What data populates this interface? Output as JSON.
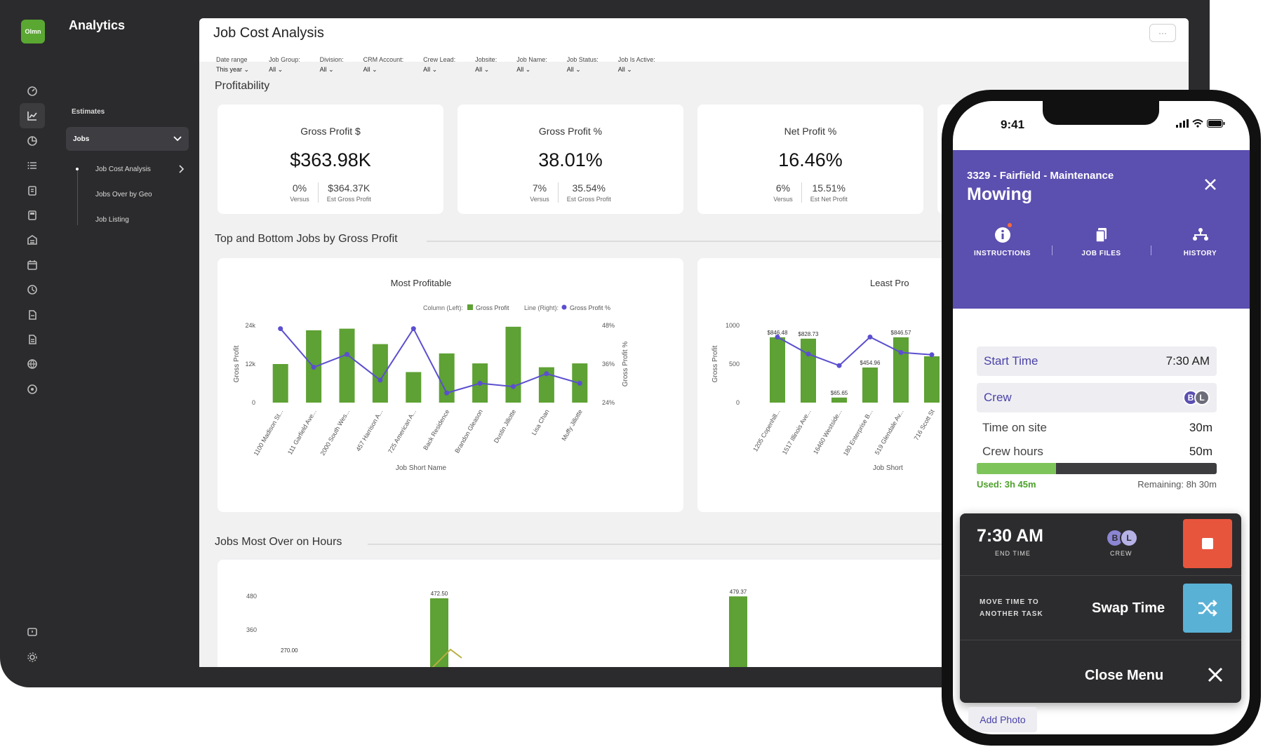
{
  "app": {
    "brand": "Olmn",
    "title": "Analytics"
  },
  "nav": {
    "section": "Estimates",
    "group": "Jobs",
    "items": [
      "Job Cost Analysis",
      "Jobs Over by Geo",
      "Job Listing"
    ]
  },
  "rail_icons": [
    "dashboard-icon",
    "chart-icon",
    "pie-icon",
    "list-icon",
    "report-icon",
    "calculator-icon",
    "building-icon",
    "calendar-icon",
    "clock-icon",
    "document-icon",
    "file-icon",
    "globe-icon",
    "target-icon"
  ],
  "rail_bottom_icons": [
    "feedback-icon",
    "settings-icon"
  ],
  "page": {
    "title": "Job Cost Analysis",
    "more_label": "···",
    "filters": [
      {
        "label": "Date range",
        "value": "This year"
      },
      {
        "label": "Job Group:",
        "value": "All"
      },
      {
        "label": "Division:",
        "value": "All"
      },
      {
        "label": "CRM Account:",
        "value": "All"
      },
      {
        "label": "Crew Lead:",
        "value": "All"
      },
      {
        "label": "Jobsite:",
        "value": "All"
      },
      {
        "label": "Job Name:",
        "value": "All"
      },
      {
        "label": "Job Status:",
        "value": "All"
      },
      {
        "label": "Job Is Active:",
        "value": "All"
      }
    ]
  },
  "profitability": {
    "title": "Profitability",
    "kpis": [
      {
        "label": "Gross Profit $",
        "value": "$363.98K",
        "a1": "0%",
        "b1": "Versus",
        "a2": "$364.37K",
        "b2": "Est Gross Profit"
      },
      {
        "label": "Gross Profit %",
        "value": "38.01%",
        "a1": "7%",
        "b1": "Versus",
        "a2": "35.54%",
        "b2": "Est Gross Profit"
      },
      {
        "label": "Net Profit %",
        "value": "16.46%",
        "a1": "6%",
        "b1": "Versus",
        "a2": "15.51%",
        "b2": "Est Net Profit"
      }
    ]
  },
  "top_bottom": {
    "title": "Top and Bottom Jobs by Gross Profit"
  },
  "hours": {
    "title": "Jobs Most Over on Hours",
    "legend": "Column (L"
  },
  "chart_data": [
    {
      "type": "bar",
      "title": "Most Profitable",
      "xlabel": "Job Short Name",
      "ylabel": "Gross Profit",
      "y2label": "Gross Profit %",
      "legend_left_caption": "Column (Left):",
      "legend_right_caption": "Line (Right):",
      "y_ticks": [
        "0",
        "12k",
        "24k"
      ],
      "y2_ticks": [
        "24%",
        "36%",
        "48%"
      ],
      "ylim": [
        0,
        24000
      ],
      "y2lim": [
        24,
        48
      ],
      "categories": [
        "1100 Madison St...",
        "111 Garfield Ave...",
        "2000 South Wes...",
        "457 Harrison A...",
        "725 American A...",
        "Back Residence",
        "Brandon Gleason",
        "Dustin Jillotte",
        "Lisa Chan",
        "Muffy Jillotte"
      ],
      "series": [
        {
          "name": "Gross Profit",
          "kind": "bar",
          "color": "#5ea134",
          "values": [
            12000,
            22500,
            23000,
            18200,
            9500,
            15300,
            12200,
            23600,
            11000,
            12200
          ]
        },
        {
          "name": "Gross Profit %",
          "kind": "line",
          "color": "#5b4fd0",
          "values": [
            47,
            35,
            39,
            31,
            47,
            27,
            30,
            29,
            33,
            30
          ]
        }
      ]
    },
    {
      "type": "bar",
      "title": "Least Pro",
      "xlabel": "Job Short",
      "ylabel": "Gross Profit",
      "y_ticks": [
        "0",
        "500",
        "1000"
      ],
      "ylim": [
        0,
        1000
      ],
      "categories": [
        "1205 Copenhill...",
        "1517 Illinois Ave...",
        "16460 Westside...",
        "180 Enterprise B...",
        "519 Glendale Av...",
        "716 Scott St"
      ],
      "series": [
        {
          "name": "Gross Profit",
          "kind": "bar",
          "color": "#5ea134",
          "values": [
            846.48,
            828.73,
            65.65,
            454.96,
            846.57,
            600
          ],
          "labels": [
            "$846.48",
            "$828.73",
            "$65.65",
            "$454.96",
            "$846.57",
            ""
          ]
        },
        {
          "name": "Gross Profit %",
          "kind": "line",
          "color": "#5b4fd0",
          "values": [
            0.85,
            0.63,
            0.48,
            0.85,
            0.65,
            0.62
          ]
        }
      ]
    },
    {
      "type": "bar",
      "title": "",
      "y_ticks": [
        "360",
        "480"
      ],
      "ylim": [
        300,
        500
      ],
      "bars": [
        {
          "label": "472.50",
          "value": 472.5
        },
        {
          "label": "479.37",
          "value": 479.37
        }
      ],
      "partial_label": "270.00"
    }
  ],
  "phone": {
    "time": "9:41",
    "job_code": "3329 - Fairfield - Maintenance",
    "job_name": "Mowing",
    "tabs": [
      {
        "label": "INSTRUCTIONS",
        "icon": "info-icon"
      },
      {
        "label": "JOB FILES",
        "icon": "files-icon"
      },
      {
        "label": "HISTORY",
        "icon": "history-icon"
      }
    ],
    "start_time_label": "Start Time",
    "start_time_value": "7:30 AM",
    "crew_label": "Crew",
    "crew_initials": [
      "B",
      "L"
    ],
    "time_on_site_label": "Time on site",
    "time_on_site_value": "30m",
    "crew_hours_label": "Crew hours",
    "crew_hours_value": "50m",
    "progress_fraction": 0.33,
    "used_label": "Used: 3h 45m",
    "remaining_label": "Remaining: 8h 30m",
    "menu": {
      "end_time": "7:30 AM",
      "end_time_label": "END TIME",
      "crew_label": "CREW",
      "move_line1": "MOVE TIME TO",
      "move_line2": "ANOTHER TASK",
      "swap_label": "Swap Time",
      "close_label": "Close Menu"
    },
    "add_photo": "Add Photo"
  }
}
